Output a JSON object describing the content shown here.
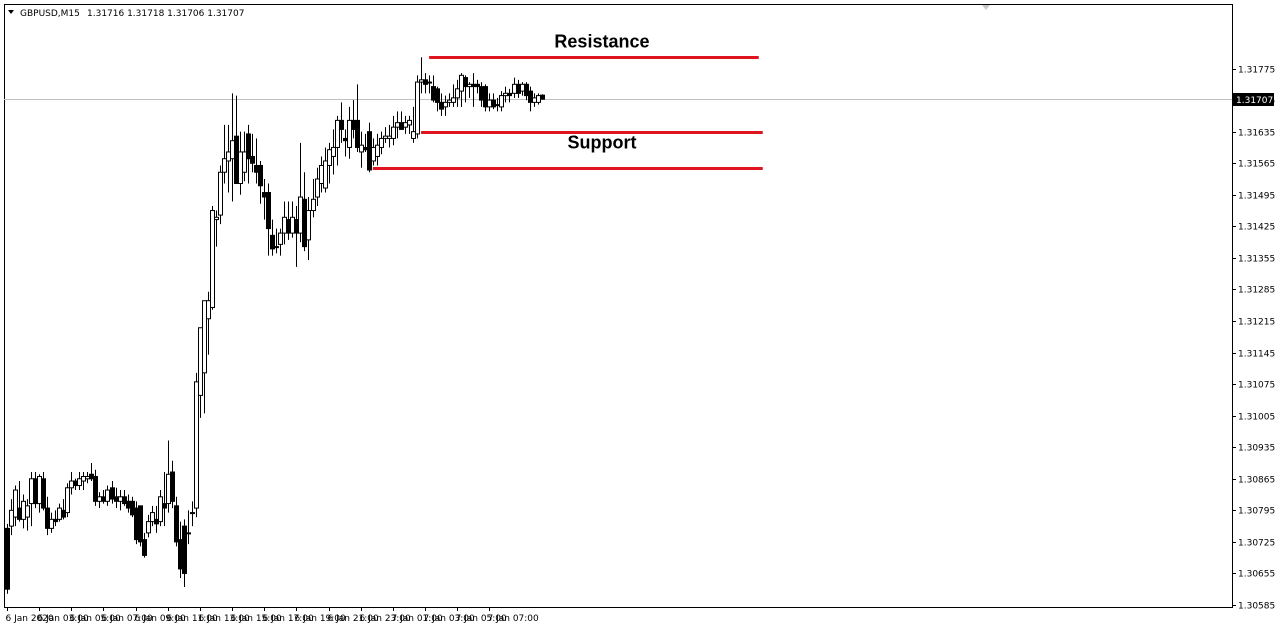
{
  "chart_header": {
    "symbol": "GBPUSD,M15",
    "ohlc": "1.31716 1.31718 1.31706 1.31707"
  },
  "colors": {
    "background": "#ffffff",
    "candle_stroke": "#000000",
    "bull_fill": "#ffffff",
    "bear_fill": "#000000",
    "annotation_line": "#e0141e",
    "current_price_label_bg": "#000000",
    "current_price_line": "#c0c0c0"
  },
  "chart_data": {
    "type": "candlestick",
    "title": "GBPUSD,M15",
    "xlabel": "",
    "ylabel": "",
    "ylim": [
      1.30585,
      1.31845
    ],
    "grid": false,
    "y_ticks": [
      "1.31775",
      "1.31705",
      "1.31635",
      "1.31565",
      "1.31495",
      "1.31425",
      "1.31355",
      "1.31285",
      "1.31215",
      "1.31145",
      "1.31075",
      "1.31005",
      "1.30935",
      "1.30865",
      "1.30795",
      "1.30725",
      "1.30655",
      "1.30585"
    ],
    "x_ticks": [
      {
        "bar": 0,
        "label": "6 Jan 2020"
      },
      {
        "bar": 8,
        "label": "6 Jan 03:00"
      },
      {
        "bar": 16,
        "label": "6 Jan 05:00"
      },
      {
        "bar": 24,
        "label": "6 Jan 07:00"
      },
      {
        "bar": 32,
        "label": "6 Jan 09:00"
      },
      {
        "bar": 40,
        "label": "6 Jan 11:00"
      },
      {
        "bar": 48,
        "label": "6 Jan 13:00"
      },
      {
        "bar": 56,
        "label": "6 Jan 15:00"
      },
      {
        "bar": 64,
        "label": "6 Jan 17:00"
      },
      {
        "bar": 72,
        "label": "6 Jan 19:00"
      },
      {
        "bar": 80,
        "label": "6 Jan 21:00"
      },
      {
        "bar": 88,
        "label": "6 Jan 23:00"
      },
      {
        "bar": 96,
        "label": "7 Jan 01:00"
      },
      {
        "bar": 104,
        "label": "7 Jan 03:00"
      },
      {
        "bar": 112,
        "label": "7 Jan 05:00"
      },
      {
        "bar": 120,
        "label": "7 Jan 07:00"
      }
    ],
    "current_price": {
      "value": 1.31707,
      "label": "1.31707"
    },
    "candles": [
      {
        "o": 1.30755,
        "h": 1.30765,
        "l": 1.3061,
        "c": 1.3062
      },
      {
        "o": 1.3076,
        "h": 1.3082,
        "l": 1.3074,
        "c": 1.30795
      },
      {
        "o": 1.3078,
        "h": 1.3085,
        "l": 1.3076,
        "c": 1.3084
      },
      {
        "o": 1.308,
        "h": 1.3086,
        "l": 1.3077,
        "c": 1.30775
      },
      {
        "o": 1.30775,
        "h": 1.3083,
        "l": 1.30755,
        "c": 1.30815
      },
      {
        "o": 1.3078,
        "h": 1.3082,
        "l": 1.3075,
        "c": 1.30805
      },
      {
        "o": 1.3081,
        "h": 1.3088,
        "l": 1.3076,
        "c": 1.30865
      },
      {
        "o": 1.30865,
        "h": 1.3088,
        "l": 1.308,
        "c": 1.3081
      },
      {
        "o": 1.3081,
        "h": 1.30875,
        "l": 1.3079,
        "c": 1.3087
      },
      {
        "o": 1.30865,
        "h": 1.3088,
        "l": 1.30795,
        "c": 1.308
      },
      {
        "o": 1.308,
        "h": 1.30825,
        "l": 1.3074,
        "c": 1.30755
      },
      {
        "o": 1.30755,
        "h": 1.3079,
        "l": 1.30745,
        "c": 1.30775
      },
      {
        "o": 1.30775,
        "h": 1.30795,
        "l": 1.3076,
        "c": 1.3077
      },
      {
        "o": 1.30775,
        "h": 1.3081,
        "l": 1.3077,
        "c": 1.308
      },
      {
        "o": 1.30795,
        "h": 1.3082,
        "l": 1.30775,
        "c": 1.3078
      },
      {
        "o": 1.3079,
        "h": 1.30855,
        "l": 1.3078,
        "c": 1.30845
      },
      {
        "o": 1.30845,
        "h": 1.3088,
        "l": 1.3083,
        "c": 1.3086
      },
      {
        "o": 1.3086,
        "h": 1.30865,
        "l": 1.3084,
        "c": 1.3085
      },
      {
        "o": 1.3085,
        "h": 1.3088,
        "l": 1.3084,
        "c": 1.30865
      },
      {
        "o": 1.3086,
        "h": 1.3088,
        "l": 1.3084,
        "c": 1.3087
      },
      {
        "o": 1.30865,
        "h": 1.3088,
        "l": 1.30855,
        "c": 1.3087
      },
      {
        "o": 1.30875,
        "h": 1.309,
        "l": 1.3086,
        "c": 1.30865
      },
      {
        "o": 1.3087,
        "h": 1.30885,
        "l": 1.30805,
        "c": 1.30815
      },
      {
        "o": 1.30815,
        "h": 1.30835,
        "l": 1.308,
        "c": 1.30825
      },
      {
        "o": 1.30825,
        "h": 1.3084,
        "l": 1.3081,
        "c": 1.30815
      },
      {
        "o": 1.30815,
        "h": 1.3085,
        "l": 1.30805,
        "c": 1.3084
      },
      {
        "o": 1.30845,
        "h": 1.3086,
        "l": 1.3081,
        "c": 1.3082
      },
      {
        "o": 1.30825,
        "h": 1.30845,
        "l": 1.308,
        "c": 1.30815
      },
      {
        "o": 1.30815,
        "h": 1.3084,
        "l": 1.30795,
        "c": 1.30825
      },
      {
        "o": 1.30825,
        "h": 1.3084,
        "l": 1.30805,
        "c": 1.3081
      },
      {
        "o": 1.30815,
        "h": 1.3083,
        "l": 1.3079,
        "c": 1.308
      },
      {
        "o": 1.30815,
        "h": 1.30825,
        "l": 1.3078,
        "c": 1.30785
      },
      {
        "o": 1.308,
        "h": 1.30815,
        "l": 1.3072,
        "c": 1.3073
      },
      {
        "o": 1.30805,
        "h": 1.30805,
        "l": 1.30715,
        "c": 1.30725
      },
      {
        "o": 1.3073,
        "h": 1.30745,
        "l": 1.3069,
        "c": 1.30695
      },
      {
        "o": 1.30745,
        "h": 1.30785,
        "l": 1.30735,
        "c": 1.3077
      },
      {
        "o": 1.3077,
        "h": 1.30805,
        "l": 1.3076,
        "c": 1.3079
      },
      {
        "o": 1.30775,
        "h": 1.30805,
        "l": 1.30745,
        "c": 1.30765
      },
      {
        "o": 1.3077,
        "h": 1.3084,
        "l": 1.3076,
        "c": 1.30825
      },
      {
        "o": 1.3081,
        "h": 1.3088,
        "l": 1.3076,
        "c": 1.308
      },
      {
        "o": 1.3081,
        "h": 1.3095,
        "l": 1.3079,
        "c": 1.30875
      },
      {
        "o": 1.3088,
        "h": 1.30905,
        "l": 1.308,
        "c": 1.30815
      },
      {
        "o": 1.30805,
        "h": 1.30825,
        "l": 1.30715,
        "c": 1.30725
      },
      {
        "o": 1.3073,
        "h": 1.3077,
        "l": 1.30645,
        "c": 1.30665
      },
      {
        "o": 1.3076,
        "h": 1.30775,
        "l": 1.30625,
        "c": 1.30655
      },
      {
        "o": 1.30745,
        "h": 1.30795,
        "l": 1.3072,
        "c": 1.30745
      },
      {
        "o": 1.3079,
        "h": 1.30815,
        "l": 1.3076,
        "c": 1.3079
      },
      {
        "o": 1.308,
        "h": 1.311,
        "l": 1.3078,
        "c": 1.3108
      },
      {
        "o": 1.3105,
        "h": 1.312,
        "l": 1.31,
        "c": 1.312
      },
      {
        "o": 1.311,
        "h": 1.3125,
        "l": 1.3101,
        "c": 1.3126
      },
      {
        "o": 1.3122,
        "h": 1.3128,
        "l": 1.3114,
        "c": 1.3126
      },
      {
        "o": 1.31245,
        "h": 1.3147,
        "l": 1.3124,
        "c": 1.3146
      },
      {
        "o": 1.3144,
        "h": 1.3146,
        "l": 1.3138,
        "c": 1.31445
      },
      {
        "o": 1.3145,
        "h": 1.3156,
        "l": 1.3143,
        "c": 1.31545
      },
      {
        "o": 1.31545,
        "h": 1.3165,
        "l": 1.3152,
        "c": 1.31575
      },
      {
        "o": 1.3157,
        "h": 1.3165,
        "l": 1.315,
        "c": 1.3159
      },
      {
        "o": 1.31575,
        "h": 1.3172,
        "l": 1.3148,
        "c": 1.31615
      },
      {
        "o": 1.31625,
        "h": 1.31715,
        "l": 1.3152,
        "c": 1.3152
      },
      {
        "o": 1.3152,
        "h": 1.31635,
        "l": 1.31495,
        "c": 1.3159
      },
      {
        "o": 1.31545,
        "h": 1.31635,
        "l": 1.31525,
        "c": 1.3159
      },
      {
        "o": 1.3163,
        "h": 1.3165,
        "l": 1.3152,
        "c": 1.31575
      },
      {
        "o": 1.3158,
        "h": 1.3163,
        "l": 1.31545,
        "c": 1.31565
      },
      {
        "o": 1.3156,
        "h": 1.3162,
        "l": 1.3152,
        "c": 1.31545
      },
      {
        "o": 1.3156,
        "h": 1.3157,
        "l": 1.31475,
        "c": 1.31515
      },
      {
        "o": 1.315,
        "h": 1.3153,
        "l": 1.3144,
        "c": 1.3149
      },
      {
        "o": 1.315,
        "h": 1.3152,
        "l": 1.3136,
        "c": 1.3142
      },
      {
        "o": 1.31405,
        "h": 1.3144,
        "l": 1.3136,
        "c": 1.31375
      },
      {
        "o": 1.3138,
        "h": 1.3142,
        "l": 1.31365,
        "c": 1.3138
      },
      {
        "o": 1.31385,
        "h": 1.3142,
        "l": 1.3136,
        "c": 1.3141
      },
      {
        "o": 1.3141,
        "h": 1.3148,
        "l": 1.31385,
        "c": 1.31445
      },
      {
        "o": 1.3144,
        "h": 1.3148,
        "l": 1.31395,
        "c": 1.3141
      },
      {
        "o": 1.3141,
        "h": 1.3148,
        "l": 1.314,
        "c": 1.31445
      },
      {
        "o": 1.3144,
        "h": 1.3147,
        "l": 1.31335,
        "c": 1.3141
      },
      {
        "o": 1.3141,
        "h": 1.3161,
        "l": 1.3139,
        "c": 1.3149
      },
      {
        "o": 1.31485,
        "h": 1.31545,
        "l": 1.3137,
        "c": 1.3138
      },
      {
        "o": 1.31395,
        "h": 1.3149,
        "l": 1.3135,
        "c": 1.3146
      },
      {
        "o": 1.3146,
        "h": 1.3153,
        "l": 1.31445,
        "c": 1.31485
      },
      {
        "o": 1.3149,
        "h": 1.31555,
        "l": 1.3147,
        "c": 1.3153
      },
      {
        "o": 1.3152,
        "h": 1.3158,
        "l": 1.315,
        "c": 1.3156
      },
      {
        "o": 1.3151,
        "h": 1.316,
        "l": 1.315,
        "c": 1.3157
      },
      {
        "o": 1.3156,
        "h": 1.3161,
        "l": 1.3152,
        "c": 1.31595
      },
      {
        "o": 1.3158,
        "h": 1.3164,
        "l": 1.3154,
        "c": 1.316
      },
      {
        "o": 1.316,
        "h": 1.3167,
        "l": 1.3156,
        "c": 1.3166
      },
      {
        "o": 1.3166,
        "h": 1.317,
        "l": 1.3161,
        "c": 1.3164
      },
      {
        "o": 1.3162,
        "h": 1.3164,
        "l": 1.3158,
        "c": 1.31615
      },
      {
        "o": 1.316,
        "h": 1.3169,
        "l": 1.31575,
        "c": 1.3166
      },
      {
        "o": 1.3166,
        "h": 1.31705,
        "l": 1.3162,
        "c": 1.3164
      },
      {
        "o": 1.3166,
        "h": 1.3174,
        "l": 1.3159,
        "c": 1.316
      },
      {
        "o": 1.3159,
        "h": 1.31635,
        "l": 1.31555,
        "c": 1.31605
      },
      {
        "o": 1.316,
        "h": 1.3163,
        "l": 1.3159,
        "c": 1.31595
      },
      {
        "o": 1.31635,
        "h": 1.31655,
        "l": 1.31545,
        "c": 1.3155
      },
      {
        "o": 1.3157,
        "h": 1.3162,
        "l": 1.3156,
        "c": 1.316
      },
      {
        "o": 1.3158,
        "h": 1.3163,
        "l": 1.3156,
        "c": 1.31605
      },
      {
        "o": 1.316,
        "h": 1.31635,
        "l": 1.31585,
        "c": 1.3162
      },
      {
        "o": 1.3162,
        "h": 1.31645,
        "l": 1.3161,
        "c": 1.31625
      },
      {
        "o": 1.3162,
        "h": 1.3165,
        "l": 1.316,
        "c": 1.31625
      },
      {
        "o": 1.3162,
        "h": 1.3167,
        "l": 1.31605,
        "c": 1.31645
      },
      {
        "o": 1.31645,
        "h": 1.3168,
        "l": 1.3162,
        "c": 1.31655
      },
      {
        "o": 1.31655,
        "h": 1.3168,
        "l": 1.3164,
        "c": 1.3164
      },
      {
        "o": 1.31645,
        "h": 1.3167,
        "l": 1.3163,
        "c": 1.31655
      },
      {
        "o": 1.3165,
        "h": 1.3167,
        "l": 1.3163,
        "c": 1.3166
      },
      {
        "o": 1.3162,
        "h": 1.3169,
        "l": 1.3161,
        "c": 1.31635
      },
      {
        "o": 1.3163,
        "h": 1.3176,
        "l": 1.3162,
        "c": 1.31745
      },
      {
        "o": 1.31745,
        "h": 1.318,
        "l": 1.3172,
        "c": 1.3175
      },
      {
        "o": 1.3175,
        "h": 1.31765,
        "l": 1.3172,
        "c": 1.3174
      },
      {
        "o": 1.31745,
        "h": 1.3176,
        "l": 1.3172,
        "c": 1.31745
      },
      {
        "o": 1.31735,
        "h": 1.3176,
        "l": 1.317,
        "c": 1.31705
      },
      {
        "o": 1.3173,
        "h": 1.31735,
        "l": 1.3168,
        "c": 1.317
      },
      {
        "o": 1.317,
        "h": 1.3172,
        "l": 1.3167,
        "c": 1.31685
      },
      {
        "o": 1.3169,
        "h": 1.31715,
        "l": 1.3167,
        "c": 1.317
      },
      {
        "o": 1.317,
        "h": 1.3172,
        "l": 1.3169,
        "c": 1.31705
      },
      {
        "o": 1.317,
        "h": 1.3174,
        "l": 1.3169,
        "c": 1.3171
      },
      {
        "o": 1.3171,
        "h": 1.3175,
        "l": 1.3169,
        "c": 1.3173
      },
      {
        "o": 1.31725,
        "h": 1.31765,
        "l": 1.3169,
        "c": 1.3176
      },
      {
        "o": 1.31755,
        "h": 1.3176,
        "l": 1.317,
        "c": 1.31735
      },
      {
        "o": 1.31735,
        "h": 1.31745,
        "l": 1.3171,
        "c": 1.3174
      },
      {
        "o": 1.3174,
        "h": 1.31765,
        "l": 1.3169,
        "c": 1.31735
      },
      {
        "o": 1.3174,
        "h": 1.3175,
        "l": 1.3172,
        "c": 1.31735
      },
      {
        "o": 1.31735,
        "h": 1.31745,
        "l": 1.3169,
        "c": 1.31705
      },
      {
        "o": 1.31735,
        "h": 1.3174,
        "l": 1.3168,
        "c": 1.3169
      },
      {
        "o": 1.3169,
        "h": 1.3172,
        "l": 1.3168,
        "c": 1.31705
      },
      {
        "o": 1.31705,
        "h": 1.3172,
        "l": 1.31685,
        "c": 1.3169
      },
      {
        "o": 1.31695,
        "h": 1.3171,
        "l": 1.3168,
        "c": 1.31695
      },
      {
        "o": 1.3169,
        "h": 1.31725,
        "l": 1.3168,
        "c": 1.31715
      },
      {
        "o": 1.31715,
        "h": 1.31735,
        "l": 1.317,
        "c": 1.3172
      },
      {
        "o": 1.3172,
        "h": 1.3173,
        "l": 1.317,
        "c": 1.31715
      },
      {
        "o": 1.3172,
        "h": 1.31755,
        "l": 1.3171,
        "c": 1.3174
      },
      {
        "o": 1.3174,
        "h": 1.3175,
        "l": 1.3171,
        "c": 1.3172
      },
      {
        "o": 1.31725,
        "h": 1.31745,
        "l": 1.31715,
        "c": 1.3174
      },
      {
        "o": 1.3174,
        "h": 1.31745,
        "l": 1.31705,
        "c": 1.31715
      },
      {
        "o": 1.31725,
        "h": 1.31735,
        "l": 1.3168,
        "c": 1.317
      },
      {
        "o": 1.317,
        "h": 1.3172,
        "l": 1.3169,
        "c": 1.3171
      },
      {
        "o": 1.317,
        "h": 1.3172,
        "l": 1.31695,
        "c": 1.31715
      },
      {
        "o": 1.31716,
        "h": 1.31718,
        "l": 1.31706,
        "c": 1.31707
      }
    ],
    "annotations": [
      {
        "type": "hline",
        "name": "resistance-line",
        "price": 1.318,
        "from_bar": 105,
        "to_bar": 187
      },
      {
        "type": "hline",
        "name": "support-line-upper",
        "price": 1.31635,
        "from_bar": 103,
        "to_bar": 188
      },
      {
        "type": "hline",
        "name": "support-line-lower",
        "price": 1.31555,
        "from_bar": 91,
        "to_bar": 188
      },
      {
        "type": "text",
        "name": "resistance-label",
        "text": "Resistance",
        "price": 1.31822,
        "bar": 148
      },
      {
        "type": "text",
        "name": "support-label",
        "text": "Support",
        "price": 1.31598,
        "bar": 148
      }
    ]
  }
}
